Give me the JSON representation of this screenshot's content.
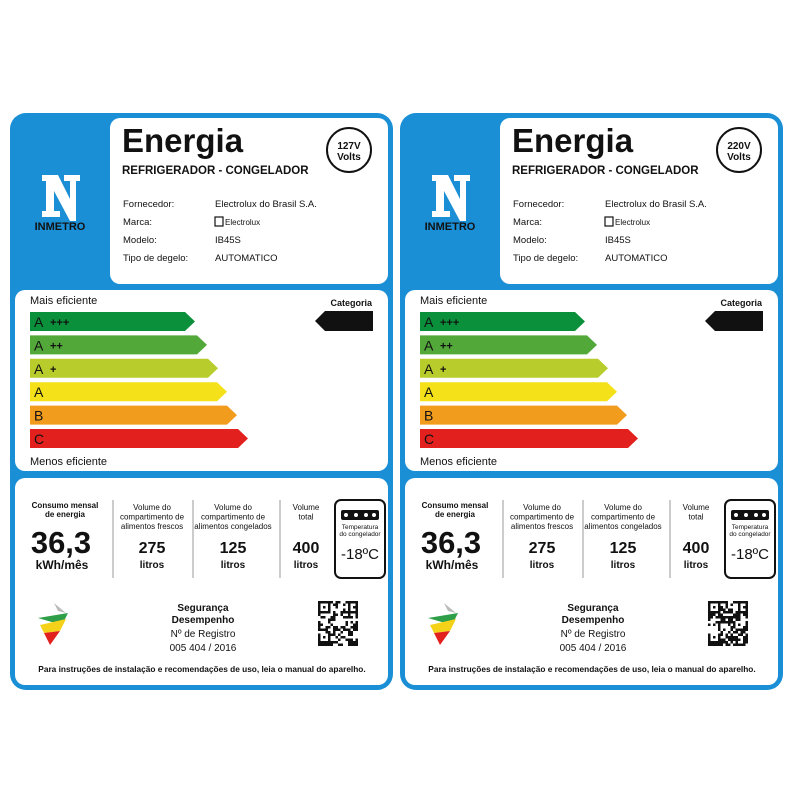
{
  "labels": [
    {
      "logo_text": "INMETRO",
      "title": "Energia",
      "subtitle": "REFRIGERADOR - CONGELADOR",
      "voltage": "127V",
      "voltage_unit": "Volts",
      "fields": [
        {
          "label": "Fornecedor:",
          "value": "Electrolux do Brasil S.A."
        },
        {
          "label": "Marca:",
          "value": "Electrolux"
        },
        {
          "label": "Modelo:",
          "value": "IB45S"
        },
        {
          "label": "Tipo de degelo:",
          "value": "AUTOMATICO"
        }
      ],
      "most_efficient": "Mais eficiente",
      "least_efficient": "Menos eficiente",
      "bars": [
        {
          "letter": "A",
          "plus": "+++"
        },
        {
          "letter": "A",
          "plus": "++"
        },
        {
          "letter": "A",
          "plus": "+"
        },
        {
          "letter": "A",
          "plus": null
        },
        {
          "letter": "B",
          "plus": null
        },
        {
          "letter": "C",
          "plus": null
        }
      ],
      "category_label": "Categoria",
      "category": {
        "letter": "A",
        "plus": "+++"
      },
      "consumption": {
        "label": [
          "Consumo mensal",
          "de energia"
        ],
        "value": "36,3",
        "unit": "kWh/mês"
      },
      "volumes": [
        {
          "label": [
            "Volume do",
            "compartimento de",
            "alimentos frescos"
          ],
          "value": "275",
          "unit": "litros"
        },
        {
          "label": [
            "Volume do",
            "compartimento de",
            "alimentos congelados"
          ],
          "value": "125",
          "unit": "litros"
        },
        {
          "label": [
            "Volume",
            "total"
          ],
          "value": "400",
          "unit": "litros"
        }
      ],
      "freezer": {
        "label": [
          "Temperatura",
          "do congelador"
        ],
        "value": "-18ºC"
      },
      "seal": [
        "Segurança",
        "Desempenho"
      ],
      "registry_label": "Nº de Registro",
      "registry": "005 404 / 2016",
      "footer": "Para instruções de instalação e recomendações de uso, leia o manual do aparelho."
    },
    {
      "logo_text": "INMETRO",
      "title": "Energia",
      "subtitle": "REFRIGERADOR - CONGELADOR",
      "voltage": "220V",
      "voltage_unit": "Volts",
      "fields": [
        {
          "label": "Fornecedor:",
          "value": "Electrolux do Brasil S.A."
        },
        {
          "label": "Marca:",
          "value": "Electrolux"
        },
        {
          "label": "Modelo:",
          "value": "IB45S"
        },
        {
          "label": "Tipo de degelo:",
          "value": "AUTOMATICO"
        }
      ],
      "most_efficient": "Mais eficiente",
      "least_efficient": "Menos eficiente",
      "bars": [
        {
          "letter": "A",
          "plus": "+++"
        },
        {
          "letter": "A",
          "plus": "++"
        },
        {
          "letter": "A",
          "plus": "+"
        },
        {
          "letter": "A",
          "plus": null
        },
        {
          "letter": "B",
          "plus": null
        },
        {
          "letter": "C",
          "plus": null
        }
      ],
      "category_label": "Categoria",
      "category": {
        "letter": "A",
        "plus": "+++"
      },
      "consumption": {
        "label": [
          "Consumo mensal",
          "de energia"
        ],
        "value": "36,3",
        "unit": "kWh/mês"
      },
      "volumes": [
        {
          "label": [
            "Volume do",
            "compartimento de",
            "alimentos frescos"
          ],
          "value": "275",
          "unit": "litros"
        },
        {
          "label": [
            "Volume do",
            "compartimento de",
            "alimentos congelados"
          ],
          "value": "125",
          "unit": "litros"
        },
        {
          "label": [
            "Volume",
            "total"
          ],
          "value": "400",
          "unit": "litros"
        }
      ],
      "freezer": {
        "label": [
          "Temperatura",
          "do congelador"
        ],
        "value": "-18ºC"
      },
      "seal": [
        "Segurança",
        "Desempenho"
      ],
      "registry_label": "Nº de Registro",
      "registry": "005 404 / 2016",
      "footer": "Para instruções de instalação e recomendações de uso, leia o manual do aparelho."
    }
  ]
}
